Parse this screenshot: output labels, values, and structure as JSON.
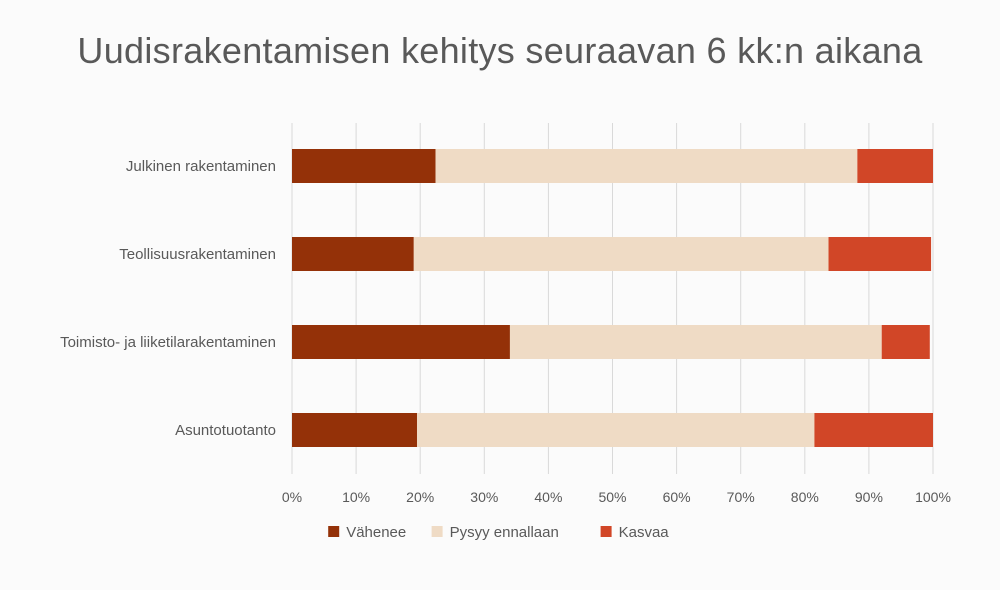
{
  "chart_data": {
    "type": "bar",
    "orientation": "horizontal",
    "stacked": true,
    "title": "Uudisrakentamisen kehitys seuraavan 6 kk:n aikana",
    "categories": [
      "Julkinen rakentaminen",
      "Teollisuusrakentaminen",
      "Toimisto- ja liiketilarakentaminen",
      "Asuntotuotanto"
    ],
    "series": [
      {
        "name": "Vähenee",
        "color": "#943108",
        "values": [
          22.4,
          19.0,
          34.0,
          19.5
        ]
      },
      {
        "name": "Pysyy ennallaan",
        "color": "#efdbc5",
        "values": [
          65.8,
          64.7,
          58.0,
          62.0
        ]
      },
      {
        "name": "Kasvaa",
        "color": "#d14627",
        "values": [
          11.8,
          16.0,
          7.5,
          18.5
        ]
      }
    ],
    "xlim": [
      0,
      100
    ],
    "x_ticks": [
      "0%",
      "10%",
      "20%",
      "30%",
      "40%",
      "50%",
      "60%",
      "70%",
      "80%",
      "90%",
      "100%"
    ],
    "grid": "vertical",
    "legend_position": "bottom"
  }
}
